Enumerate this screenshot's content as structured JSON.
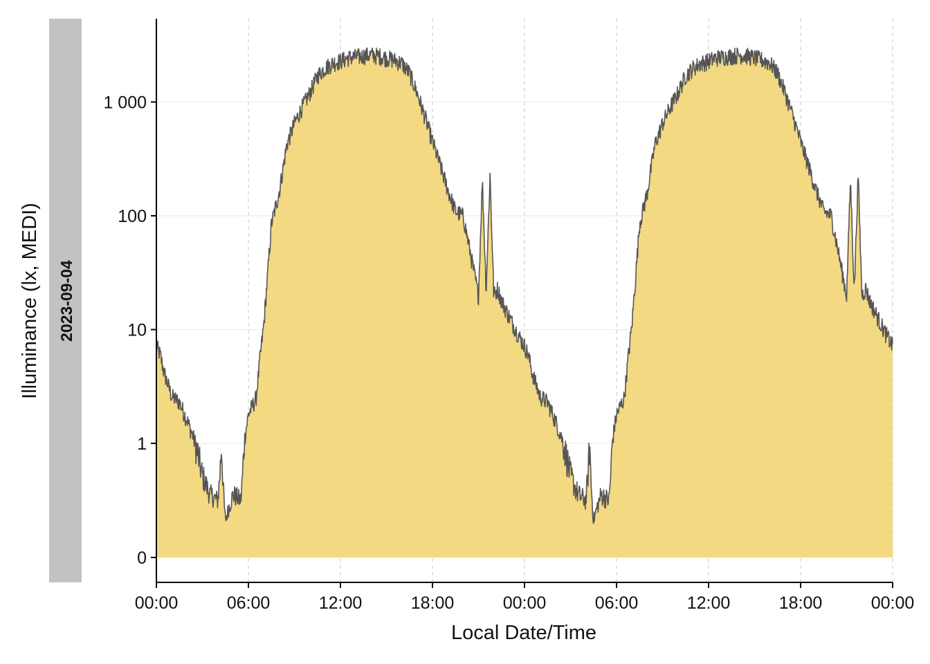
{
  "chart_data": {
    "type": "area",
    "title": "",
    "facet_label": "2023-09-04",
    "xlabel": "Local Date/Time",
    "ylabel": "Illuminance (lx, MEDI)",
    "x_ticks": [
      "00:00",
      "06:00",
      "12:00",
      "18:00",
      "00:00",
      "06:00",
      "12:00",
      "18:00",
      "00:00"
    ],
    "x_tick_hours": [
      0,
      6,
      12,
      18,
      24,
      30,
      36,
      42,
      48
    ],
    "xlim_hours": [
      0,
      48
    ],
    "y_scale": "symlog",
    "y_ticks": [
      "0",
      "1",
      "10",
      "100",
      "1 000"
    ],
    "y_tick_values": [
      0,
      1,
      10,
      100,
      1000
    ],
    "ylim": [
      0,
      3500
    ],
    "x_grid": "dashed vertical",
    "y_grid": "faint horizontal",
    "series": [
      {
        "hours": [
          0,
          0.25,
          0.5,
          1,
          1.5,
          2,
          2.5,
          3,
          3.5,
          4,
          4.25,
          4.5,
          4.75,
          5,
          5.5,
          5.75,
          6,
          6.5,
          6.75,
          7,
          7.25,
          7.5,
          8,
          8.5,
          9,
          9.5,
          10,
          10.5,
          11,
          11.5,
          12,
          12.5,
          13,
          13.5,
          14,
          14.5,
          15,
          15.5,
          16,
          16.5,
          17,
          17.5,
          18,
          18.5,
          19,
          19.5,
          20,
          20.5,
          21,
          21.25,
          21.5,
          21.75,
          22,
          22.25,
          22.5,
          23,
          23.5,
          24
        ],
        "values": [
          7.2,
          6,
          4.2,
          2.6,
          2.3,
          1.6,
          1.05,
          0.72,
          0.55,
          0.5,
          1,
          0.33,
          0.45,
          0.55,
          0.5,
          1.1,
          1.8,
          2.5,
          5.5,
          11,
          30,
          85,
          160,
          420,
          650,
          900,
          1200,
          1700,
          2000,
          2200,
          2300,
          2450,
          2500,
          2550,
          2600,
          2550,
          2450,
          2350,
          2200,
          1800,
          1200,
          750,
          450,
          280,
          170,
          110,
          100,
          45,
          20,
          210,
          22,
          230,
          20,
          23,
          18,
          13,
          9.5,
          7.2
        ],
        "fill": "#f3d982",
        "stroke": "#555555"
      }
    ]
  }
}
